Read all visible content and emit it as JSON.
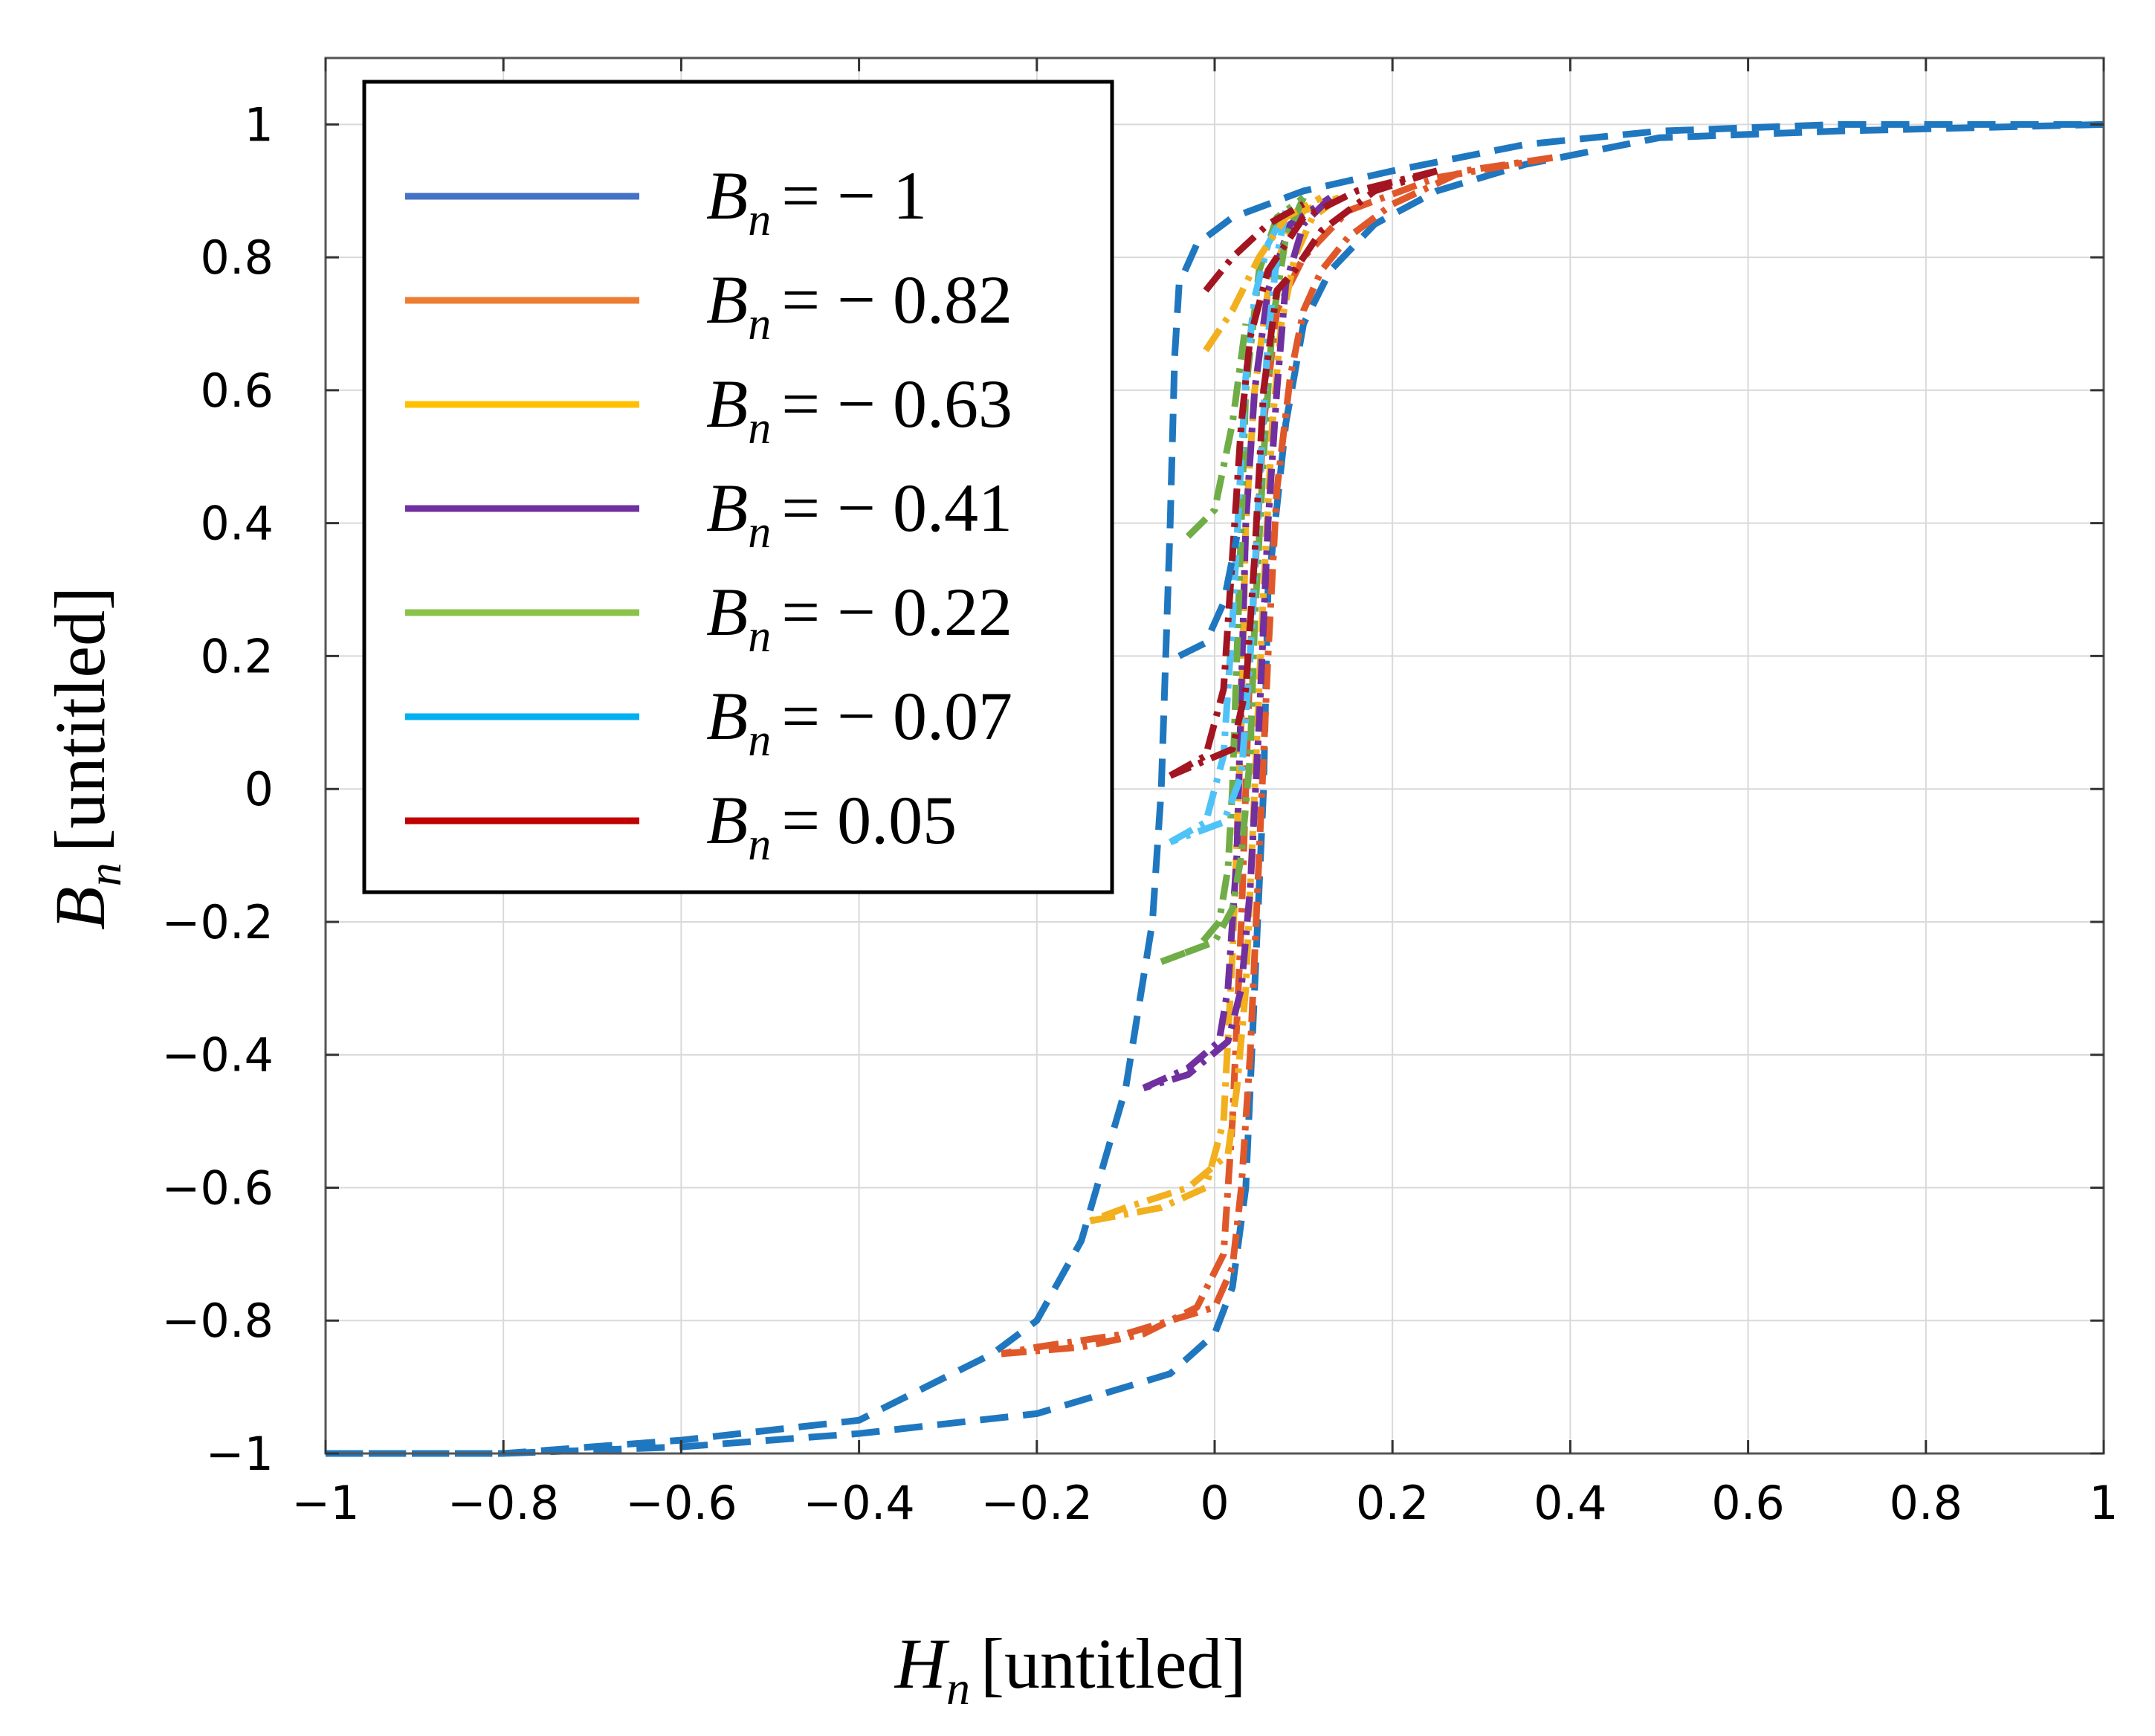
{
  "chart_data": {
    "type": "line",
    "title": "",
    "xlabel": {
      "symbol": "H",
      "subscript": "n",
      "unit": "[untitled]"
    },
    "ylabel": {
      "symbol": "B",
      "subscript": "n",
      "unit": "[untitled]"
    },
    "xlim": [
      -1,
      1
    ],
    "ylim": [
      -1,
      1.1
    ],
    "xticks": [
      {
        "v": -1,
        "label": "−1"
      },
      {
        "v": -0.8,
        "label": "−0.8"
      },
      {
        "v": -0.6,
        "label": "−0.6"
      },
      {
        "v": -0.4,
        "label": "−0.4"
      },
      {
        "v": -0.2,
        "label": "−0.2"
      },
      {
        "v": 0,
        "label": "0"
      },
      {
        "v": 0.2,
        "label": "0.2"
      },
      {
        "v": 0.4,
        "label": "0.4"
      },
      {
        "v": 0.6,
        "label": "0.6"
      },
      {
        "v": 0.8,
        "label": "0.8"
      },
      {
        "v": 1,
        "label": "1"
      }
    ],
    "yticks": [
      {
        "v": -1,
        "label": "−1"
      },
      {
        "v": -0.8,
        "label": "−0.8"
      },
      {
        "v": -0.6,
        "label": "−0.6"
      },
      {
        "v": -0.4,
        "label": "−0.4"
      },
      {
        "v": -0.2,
        "label": "−0.2"
      },
      {
        "v": 0,
        "label": "0"
      },
      {
        "v": 0.2,
        "label": "0.2"
      },
      {
        "v": 0.4,
        "label": "0.4"
      },
      {
        "v": 0.6,
        "label": "0.6"
      },
      {
        "v": 0.8,
        "label": "0.8"
      },
      {
        "v": 1,
        "label": "1"
      }
    ],
    "grid": true,
    "legend_position": "top-left",
    "series": [
      {
        "name": "B_n = − 1",
        "legend_symbol": "B",
        "legend_subscript": "n",
        "legend_value": "= − 1",
        "color": "#1f77c0",
        "legend_color": "#4472c4",
        "dash": "dashed",
        "branches": [
          [
            [
              -1,
              -1
            ],
            [
              -0.8,
              -1
            ],
            [
              -0.6,
              -0.98
            ],
            [
              -0.4,
              -0.95
            ],
            [
              -0.25,
              -0.85
            ],
            [
              -0.2,
              -0.8
            ],
            [
              -0.15,
              -0.68
            ],
            [
              -0.1,
              -0.45
            ],
            [
              -0.07,
              -0.2
            ],
            [
              -0.06,
              0
            ],
            [
              -0.05,
              0.4
            ],
            [
              -0.045,
              0.65
            ],
            [
              -0.04,
              0.76
            ],
            [
              -0.02,
              0.82
            ],
            [
              0.02,
              0.86
            ],
            [
              0.1,
              0.9
            ],
            [
              0.2,
              0.93
            ],
            [
              0.35,
              0.97
            ],
            [
              0.5,
              0.99
            ],
            [
              0.7,
              1.0
            ],
            [
              1,
              1
            ]
          ],
          [
            [
              1,
              1
            ],
            [
              0.7,
              0.99
            ],
            [
              0.5,
              0.98
            ],
            [
              0.35,
              0.94
            ],
            [
              0.25,
              0.9
            ],
            [
              0.18,
              0.85
            ],
            [
              0.13,
              0.78
            ],
            [
              0.1,
              0.7
            ],
            [
              0.08,
              0.55
            ],
            [
              0.06,
              0.3
            ],
            [
              0.055,
              0
            ],
            [
              0.045,
              -0.3
            ],
            [
              0.035,
              -0.6
            ],
            [
              0.02,
              -0.75
            ],
            [
              0,
              -0.82
            ],
            [
              -0.05,
              -0.88
            ],
            [
              -0.2,
              -0.94
            ],
            [
              -0.4,
              -0.97
            ],
            [
              -0.6,
              -0.99
            ],
            [
              -0.8,
              -1
            ],
            [
              -1,
              -1
            ]
          ]
        ]
      },
      {
        "name": "B_n = − 0.82",
        "legend_symbol": "B",
        "legend_subscript": "n",
        "legend_value": "= − 0.82",
        "color": "#e0582a",
        "legend_color": "#ed7d31",
        "dash": "dashdot",
        "branches": [
          [
            [
              -0.24,
              -0.85
            ],
            [
              -0.15,
              -0.84
            ],
            [
              -0.08,
              -0.82
            ],
            [
              -0.02,
              -0.78
            ],
            [
              0.01,
              -0.7
            ],
            [
              0.02,
              -0.5
            ],
            [
              0.03,
              -0.2
            ],
            [
              0.04,
              0.2
            ],
            [
              0.055,
              0.55
            ],
            [
              0.07,
              0.72
            ],
            [
              0.1,
              0.8
            ],
            [
              0.15,
              0.87
            ],
            [
              0.25,
              0.92
            ],
            [
              0.38,
              0.95
            ]
          ],
          [
            [
              0.38,
              0.95
            ],
            [
              0.28,
              0.93
            ],
            [
              0.2,
              0.88
            ],
            [
              0.15,
              0.83
            ],
            [
              0.12,
              0.78
            ],
            [
              0.1,
              0.72
            ],
            [
              0.085,
              0.62
            ],
            [
              0.07,
              0.45
            ],
            [
              0.06,
              0.2
            ],
            [
              0.05,
              -0.1
            ],
            [
              0.04,
              -0.4
            ],
            [
              0.03,
              -0.6
            ],
            [
              0.02,
              -0.72
            ],
            [
              0.0,
              -0.78
            ],
            [
              -0.1,
              -0.82
            ],
            [
              -0.2,
              -0.84
            ],
            [
              -0.24,
              -0.85
            ]
          ]
        ]
      },
      {
        "name": "B_n = − 0.63",
        "legend_symbol": "B",
        "legend_subscript": "n",
        "legend_value": "= − 0.63",
        "color": "#f2b01e",
        "legend_color": "#ffc000",
        "dash": "dashdot",
        "branches": [
          [
            [
              -0.14,
              -0.65
            ],
            [
              -0.06,
              -0.63
            ],
            [
              -0.01,
              -0.6
            ],
            [
              0.01,
              -0.5
            ],
            [
              0.02,
              -0.25
            ],
            [
              0.03,
              0.1
            ],
            [
              0.035,
              0.4
            ],
            [
              0.045,
              0.6
            ],
            [
              0.06,
              0.75
            ],
            [
              0.08,
              0.83
            ],
            [
              0.1,
              0.87
            ],
            [
              0.14,
              0.89
            ]
          ],
          [
            [
              0.14,
              0.89
            ],
            [
              0.11,
              0.86
            ],
            [
              0.09,
              0.8
            ],
            [
              0.075,
              0.7
            ],
            [
              0.065,
              0.55
            ],
            [
              0.055,
              0.3
            ],
            [
              0.045,
              0
            ],
            [
              0.035,
              -0.3
            ],
            [
              0.025,
              -0.45
            ],
            [
              0.015,
              -0.55
            ],
            [
              -0.03,
              -0.6
            ],
            [
              -0.1,
              -0.63
            ],
            [
              -0.14,
              -0.65
            ]
          ]
        ]
      },
      {
        "name": "B_n = − 0.41",
        "legend_symbol": "B",
        "legend_subscript": "n",
        "legend_value": "= − 0.41",
        "color": "#7030a0",
        "legend_color": "#7030a0",
        "dash": "dashdot",
        "branches": [
          [
            [
              -0.08,
              -0.45
            ],
            [
              -0.03,
              -0.42
            ],
            [
              0.005,
              -0.38
            ],
            [
              0.015,
              -0.3
            ],
            [
              0.025,
              -0.1
            ],
            [
              0.03,
              0.15
            ],
            [
              0.035,
              0.4
            ],
            [
              0.045,
              0.6
            ],
            [
              0.06,
              0.75
            ],
            [
              0.085,
              0.85
            ],
            [
              0.13,
              0.89
            ]
          ],
          [
            [
              0.13,
              0.89
            ],
            [
              0.1,
              0.85
            ],
            [
              0.08,
              0.76
            ],
            [
              0.07,
              0.6
            ],
            [
              0.06,
              0.4
            ],
            [
              0.05,
              0.1
            ],
            [
              0.04,
              -0.15
            ],
            [
              0.03,
              -0.3
            ],
            [
              0.015,
              -0.38
            ],
            [
              -0.03,
              -0.43
            ],
            [
              -0.08,
              -0.45
            ]
          ]
        ]
      },
      {
        "name": "B_n = − 0.22",
        "legend_symbol": "B",
        "legend_subscript": "n",
        "legend_value": "= − 0.22",
        "color": "#70ad47",
        "legend_color": "#8bc34a",
        "dash": "dashdot",
        "branches": [
          [
            [
              -0.06,
              -0.26
            ],
            [
              -0.02,
              -0.24
            ],
            [
              0.005,
              -0.2
            ],
            [
              0.015,
              -0.12
            ],
            [
              0.02,
              0
            ],
            [
              0.025,
              0.2
            ],
            [
              0.03,
              0.4
            ],
            [
              0.035,
              0.6
            ],
            [
              0.05,
              0.78
            ],
            [
              0.07,
              0.86
            ],
            [
              0.1,
              0.89
            ]
          ],
          [
            [
              0.1,
              0.89
            ],
            [
              0.08,
              0.83
            ],
            [
              0.065,
              0.7
            ],
            [
              0.055,
              0.5
            ],
            [
              0.045,
              0.25
            ],
            [
              0.04,
              0.05
            ],
            [
              0.03,
              -0.1
            ],
            [
              0.02,
              -0.18
            ],
            [
              0.0,
              -0.23
            ],
            [
              -0.06,
              -0.26
            ]
          ]
        ]
      },
      {
        "name": "B_n = − 0.07",
        "legend_symbol": "B",
        "legend_subscript": "n",
        "legend_value": "= − 0.07",
        "color": "#4fc3f7",
        "legend_color": "#00b0f0",
        "dash": "dashdot",
        "branches": [
          [
            [
              -0.05,
              -0.08
            ],
            [
              -0.01,
              -0.05
            ],
            [
              0.01,
              0.05
            ],
            [
              0.02,
              0.25
            ],
            [
              0.028,
              0.45
            ],
            [
              0.035,
              0.62
            ],
            [
              0.045,
              0.74
            ],
            [
              0.06,
              0.82
            ],
            [
              0.08,
              0.87
            ]
          ],
          [
            [
              0.08,
              0.87
            ],
            [
              0.07,
              0.8
            ],
            [
              0.06,
              0.68
            ],
            [
              0.05,
              0.45
            ],
            [
              0.04,
              0.2
            ],
            [
              0.03,
              0.02
            ],
            [
              0.01,
              -0.05
            ],
            [
              -0.05,
              -0.08
            ]
          ]
        ]
      },
      {
        "name": "B_n = 0.05",
        "legend_symbol": "B",
        "legend_subscript": "n",
        "legend_value": "= 0.05",
        "color": "#a31521",
        "legend_color": "#c00000",
        "dash": "dashdot",
        "branches": [
          [
            [
              -0.05,
              0.02
            ],
            [
              -0.01,
              0.05
            ],
            [
              0.01,
              0.15
            ],
            [
              0.02,
              0.35
            ],
            [
              0.03,
              0.55
            ],
            [
              0.04,
              0.68
            ],
            [
              0.06,
              0.78
            ],
            [
              0.1,
              0.86
            ],
            [
              0.16,
              0.9
            ],
            [
              0.25,
              0.93
            ]
          ],
          [
            [
              0.25,
              0.93
            ],
            [
              0.18,
              0.9
            ],
            [
              0.12,
              0.84
            ],
            [
              0.09,
              0.78
            ],
            [
              0.07,
              0.75
            ],
            [
              0.055,
              0.6
            ],
            [
              0.045,
              0.35
            ],
            [
              0.035,
              0.15
            ],
            [
              0.02,
              0.06
            ],
            [
              -0.05,
              0.02
            ]
          ]
        ]
      },
      {
        "name": "B_n = − 0.63 upper return",
        "legend": false,
        "color": "#f2b01e",
        "dash": "dashdot",
        "branches": [
          [
            [
              -0.01,
              0.66
            ],
            [
              0.02,
              0.72
            ],
            [
              0.05,
              0.8
            ],
            [
              0.08,
              0.86
            ],
            [
              0.12,
              0.89
            ]
          ]
        ]
      },
      {
        "name": "B_n = − 0.22 upper return",
        "legend": false,
        "color": "#70ad47",
        "dash": "dashdot",
        "branches": [
          [
            [
              -0.03,
              0.38
            ],
            [
              0.0,
              0.42
            ],
            [
              0.02,
              0.55
            ],
            [
              0.035,
              0.7
            ]
          ]
        ]
      },
      {
        "name": "B_n = − 1 mid return",
        "legend": false,
        "color": "#1f77c0",
        "dash": "dashed",
        "branches": [
          [
            [
              -0.04,
              0.2
            ],
            [
              -0.01,
              0.22
            ],
            [
              0.01,
              0.28
            ],
            [
              0.025,
              0.38
            ]
          ]
        ]
      },
      {
        "name": "B_n = 0.05 upper return",
        "legend": false,
        "color": "#a31521",
        "dash": "dashdot",
        "branches": [
          [
            [
              -0.01,
              0.75
            ],
            [
              0.02,
              0.8
            ],
            [
              0.06,
              0.85
            ],
            [
              0.1,
              0.88
            ]
          ]
        ]
      }
    ]
  }
}
